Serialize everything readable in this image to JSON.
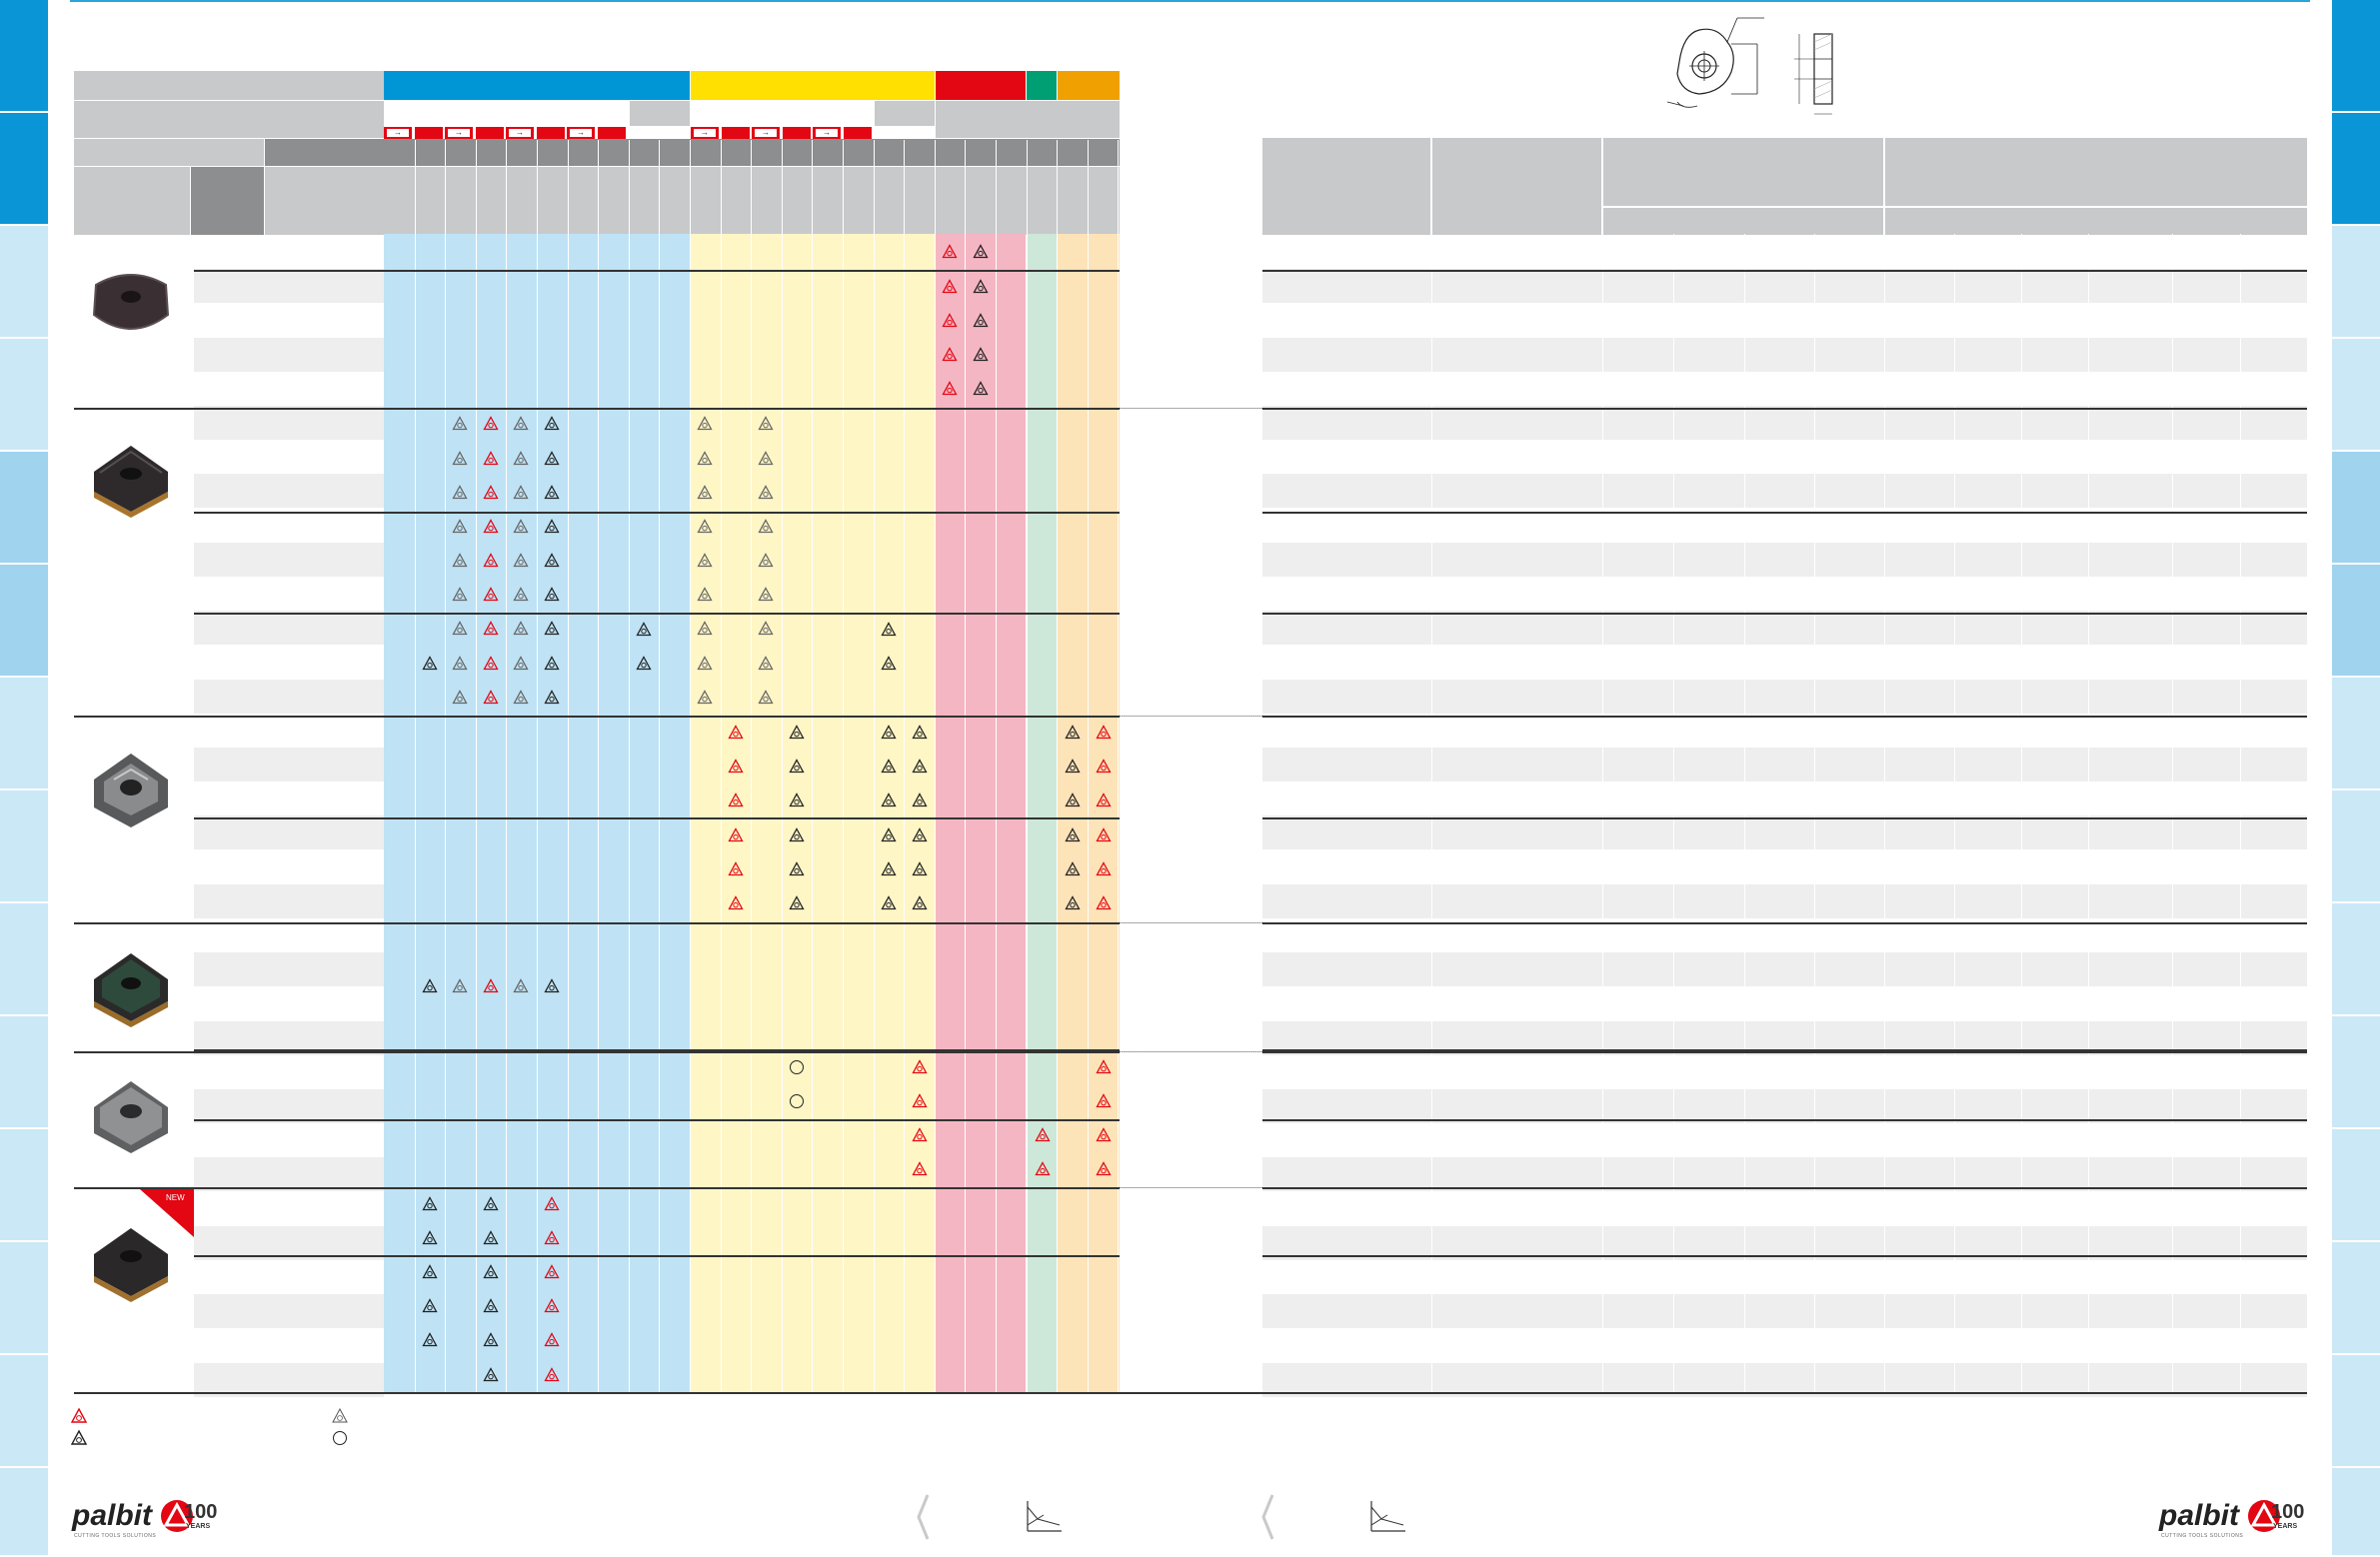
{
  "colors": {
    "blue": "#0096d6",
    "light_blue": "#bfe3f5",
    "yellow": "#ffe000",
    "light_yellow": "#fff6c6",
    "red": "#e30613",
    "light_red": "#f5b6c3",
    "green": "#009e73",
    "light_green": "#cde8d8",
    "orange": "#f0a000",
    "light_orange": "#fde3b8",
    "gray_header": "#c8c9cb",
    "dark_gray": "#8c8e90",
    "side_tab_dark": "#0a95d6",
    "side_tab_light": "#cbe8f7",
    "side_tab_mid": "#9fd3ee"
  },
  "badge": {
    "new": "NEW"
  },
  "brand": {
    "name": "palbit",
    "tagline": "CUTTING TOOLS SOLUTIONS",
    "years_number": "100",
    "years_word": "YEARS"
  },
  "icons": {
    "legend_red": "red-insert-grade-icon",
    "legend_black": "black-insert-grade-icon",
    "legend_outline": "outline-insert-grade-icon",
    "legend_circle": "circle-availability-icon",
    "page_chevron": "chevron-left-icon",
    "chart": "feed-depth-chart-icon",
    "drawing": "insert-technical-drawing-icon"
  }
}
